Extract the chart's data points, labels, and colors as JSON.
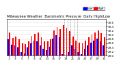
{
  "title": "Milwaukee Weather  Barometric Pressure  Daily High/Low",
  "bar_width": 0.38,
  "high_color": "#ff0000",
  "low_color": "#0000ff",
  "background_color": "#ffffff",
  "ylim": [
    29.0,
    30.75
  ],
  "yticks": [
    29.0,
    29.2,
    29.4,
    29.6,
    29.8,
    30.0,
    30.2,
    30.4,
    30.6
  ],
  "dashed_x": [
    17.5,
    18.5,
    19.5,
    20.5,
    21.5
  ],
  "n": 31,
  "highs": [
    30.12,
    29.85,
    29.92,
    29.78,
    29.6,
    29.55,
    29.68,
    29.95,
    30.05,
    30.1,
    29.88,
    29.7,
    29.68,
    29.8,
    30.22,
    30.38,
    30.28,
    30.45,
    30.35,
    30.18,
    29.92,
    29.72,
    29.62,
    29.58,
    29.72,
    29.88,
    30.02,
    30.12,
    30.22,
    30.08,
    29.88
  ],
  "lows": [
    29.78,
    29.52,
    29.48,
    29.38,
    29.18,
    29.12,
    29.38,
    29.58,
    29.72,
    29.68,
    29.48,
    29.32,
    29.28,
    29.42,
    29.82,
    29.98,
    29.88,
    29.08,
    29.02,
    29.18,
    29.48,
    29.32,
    29.18,
    29.08,
    29.32,
    29.48,
    29.62,
    29.72,
    29.82,
    29.68,
    29.48
  ],
  "xlabels_pos": [
    0,
    2,
    4,
    6,
    8,
    10,
    12,
    14,
    16,
    18,
    20,
    22,
    24,
    26,
    28,
    30
  ],
  "xlabels": [
    "1",
    "3",
    "5",
    "7",
    "9",
    "11",
    "13",
    "15",
    "17",
    "19",
    "21",
    "23",
    "25",
    "27",
    "29",
    "31"
  ],
  "legend_high": "High",
  "legend_low": "Low",
  "legend_color": "#0000ff",
  "legend_high_color": "#ff0000"
}
